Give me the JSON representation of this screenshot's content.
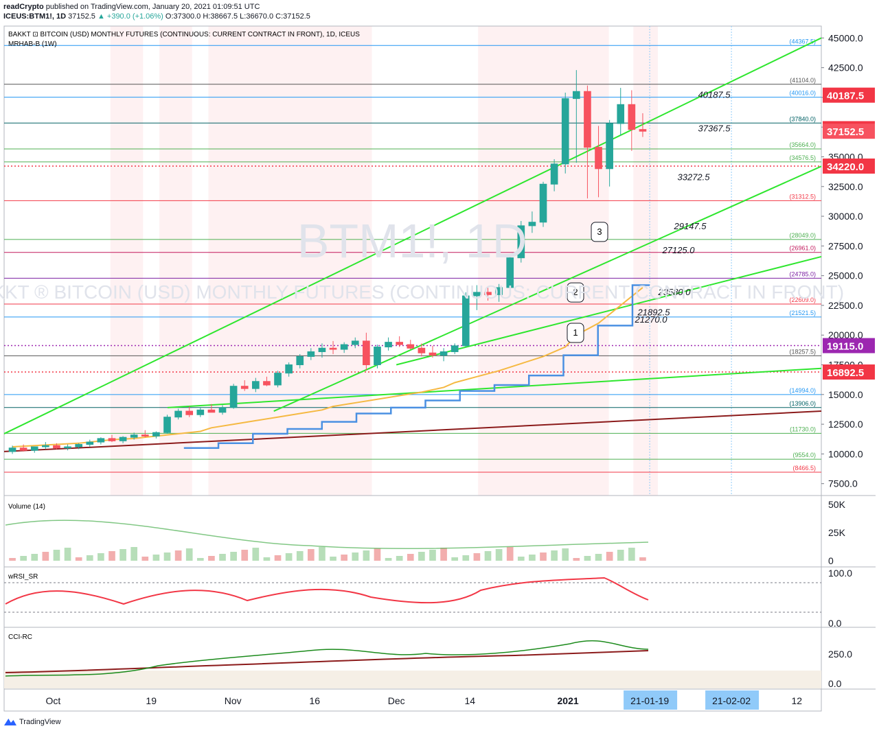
{
  "header": {
    "publisher": "readCrypto",
    "published_on": "published on TradingView.com, January 20, 2021 01:09:51 UTC",
    "symbol": "ICEUS:BTM1!, 1D",
    "price": "37152.5",
    "change": "▲ +390.0 (+1.06%)",
    "ohlc": "O:37300.0 H:38667.5 L:36670.0 C:37152.5"
  },
  "chart": {
    "title": "BAKKT ⊡ BITCOIN (USD) MONTHLY FUTURES (CONTINUOUS: CURRENT CONTRACT IN FRONT), 1D, ICEUS",
    "indicator_line": "MRHAB-B (1W)",
    "watermark_big": "BTM1!, 1D",
    "watermark_small": "BAKKT ® BITCOIN (USD) MONTHLY FUTURES (CONTINUOUS: CURRENT CONTRACT IN FRONT)"
  },
  "chart_data": {
    "type": "candlestick",
    "y_ticks": [
      "45000.0",
      "42500.0",
      "40000.0",
      "37500.0",
      "35000.0",
      "32500.0",
      "30000.0",
      "27500.0",
      "25000.0",
      "22500.0",
      "20000.0",
      "17500.0",
      "15000.0",
      "12500.0",
      "10000.0",
      "7500.0"
    ],
    "x_ticks": [
      "Oct",
      "19",
      "Nov",
      "16",
      "Dec",
      "14",
      "2021",
      "21-01-19",
      "21-02-02",
      "12"
    ],
    "price_badges": [
      {
        "value": "40187.5",
        "color": "#f23645"
      },
      {
        "value": "37367.5",
        "color": "#f23645"
      },
      {
        "value": "37152.5",
        "color": "#f7525f"
      },
      {
        "value": "34220.0",
        "color": "#f23645"
      },
      {
        "value": "19115.0",
        "color": "#9c27b0"
      },
      {
        "value": "16892.5",
        "color": "#f23645"
      }
    ],
    "horizontal_levels": [
      {
        "value": 44367.5,
        "label": "(44367.5)",
        "color": "#2196f3"
      },
      {
        "value": 41104.0,
        "label": "(41104.0)",
        "color": "#555555"
      },
      {
        "value": 40016.0,
        "label": "(40016.0)",
        "color": "#2196f3"
      },
      {
        "value": 37840.0,
        "label": "(37840.0)",
        "color": "#006064"
      },
      {
        "value": 35664.0,
        "label": "(35664.0)",
        "color": "#4caf50"
      },
      {
        "value": 34576.5,
        "label": "(34576.5)",
        "color": "#4caf50"
      },
      {
        "value": 31312.5,
        "label": "(31312.5)",
        "color": "#f23645"
      },
      {
        "value": 28049.0,
        "label": "(28049.0)",
        "color": "#4caf50"
      },
      {
        "value": 26961.0,
        "label": "(26961.0)",
        "color": "#c2185b"
      },
      {
        "value": 24785.0,
        "label": "(24785.0)",
        "color": "#7b1fa2"
      },
      {
        "value": 22609.0,
        "label": "(22609.0)",
        "color": "#f23645"
      },
      {
        "value": 21521.5,
        "label": "(21521.5)",
        "color": "#2196f3"
      },
      {
        "value": 18257.5,
        "label": "(18257.5)",
        "color": "#555555"
      },
      {
        "value": 14994.0,
        "label": "(14994.0)",
        "color": "#2196f3"
      },
      {
        "value": 13906.0,
        "label": "(13906.0)",
        "color": "#006064"
      },
      {
        "value": 11730.0,
        "label": "(11730.0)",
        "color": "#4caf50"
      },
      {
        "value": 9554.0,
        "label": "(9554.0)",
        "color": "#4caf50"
      },
      {
        "value": 8466.5,
        "label": "(8466.5)",
        "color": "#f23645"
      }
    ],
    "annotations": [
      {
        "text": "40187.5"
      },
      {
        "text": "37367.5"
      },
      {
        "text": "33272.5"
      },
      {
        "text": "29147.5"
      },
      {
        "text": "27125.0"
      },
      {
        "text": "23580.0"
      },
      {
        "text": "21892.5"
      },
      {
        "text": "21270.0"
      }
    ],
    "callouts": [
      "1",
      "2",
      "3"
    ],
    "candles": [
      [
        10200,
        10700,
        10000,
        10500
      ],
      [
        10500,
        10800,
        10200,
        10300
      ],
      [
        10300,
        10600,
        10100,
        10600
      ],
      [
        10600,
        11000,
        10400,
        10700
      ],
      [
        10700,
        10900,
        10400,
        10500
      ],
      [
        10500,
        10800,
        10300,
        10600
      ],
      [
        10600,
        10900,
        10400,
        10800
      ],
      [
        10800,
        11200,
        10600,
        11000
      ],
      [
        11000,
        11400,
        10800,
        11300
      ],
      [
        11300,
        11600,
        11000,
        11100
      ],
      [
        11100,
        11500,
        10900,
        11400
      ],
      [
        11400,
        11800,
        11200,
        11600
      ],
      [
        11600,
        12000,
        11400,
        11500
      ],
      [
        11500,
        11900,
        11300,
        11800
      ],
      [
        11800,
        13300,
        11700,
        13100
      ],
      [
        13100,
        13800,
        12900,
        13600
      ],
      [
        13600,
        14000,
        13100,
        13300
      ],
      [
        13300,
        13900,
        13100,
        13700
      ],
      [
        13700,
        14200,
        13500,
        13500
      ],
      [
        13500,
        14100,
        13300,
        13900
      ],
      [
        13900,
        15900,
        13800,
        15700
      ],
      [
        15700,
        16200,
        15300,
        15500
      ],
      [
        15500,
        16400,
        15200,
        16100
      ],
      [
        16100,
        16500,
        15700,
        15800
      ],
      [
        15800,
        17000,
        15600,
        16800
      ],
      [
        16800,
        17700,
        16500,
        17500
      ],
      [
        17500,
        18400,
        17200,
        18200
      ],
      [
        18200,
        18900,
        17900,
        18600
      ],
      [
        18600,
        19300,
        18100,
        18900
      ],
      [
        18900,
        19500,
        18400,
        18800
      ],
      [
        18800,
        19400,
        18500,
        19200
      ],
      [
        19200,
        19800,
        18900,
        19500
      ],
      [
        19500,
        20200,
        17000,
        17500
      ],
      [
        17500,
        19200,
        17200,
        19000
      ],
      [
        19000,
        19800,
        18700,
        19400
      ],
      [
        19400,
        19900,
        19000,
        19200
      ],
      [
        19200,
        19600,
        18800,
        18900
      ],
      [
        18900,
        19300,
        18200,
        18500
      ],
      [
        18500,
        19100,
        18100,
        18300
      ],
      [
        18300,
        18900,
        17800,
        18600
      ],
      [
        18600,
        19300,
        18400,
        19100
      ],
      [
        19100,
        23600,
        19000,
        23300
      ],
      [
        23300,
        24200,
        22100,
        23600
      ],
      [
        23600,
        24100,
        22900,
        23400
      ],
      [
        23400,
        24300,
        22800,
        24000
      ],
      [
        24000,
        26800,
        23900,
        26500
      ],
      [
        26500,
        29600,
        26100,
        29200
      ],
      [
        29200,
        30400,
        28600,
        29500
      ],
      [
        29500,
        32900,
        29100,
        32700
      ],
      [
        32700,
        34800,
        32100,
        34400
      ],
      [
        34400,
        40400,
        33600,
        39900
      ],
      [
        39900,
        42300,
        34500,
        40500
      ],
      [
        40500,
        41000,
        31500,
        35800
      ],
      [
        35800,
        37600,
        31600,
        34000
      ],
      [
        34000,
        38100,
        32500,
        37800
      ],
      [
        37800,
        40800,
        36800,
        39400
      ],
      [
        39400,
        40600,
        35500,
        37300
      ],
      [
        37300,
        38667.5,
        36670,
        37152.5
      ]
    ],
    "ma_orange": [
      10600,
      10700,
      10800,
      10900,
      11000,
      11200,
      11300,
      11500,
      11700,
      11900,
      12200,
      12500,
      12800,
      13100,
      13400,
      13700,
      14000,
      14300,
      14600,
      14900,
      15200,
      15600,
      16000,
      16500,
      17000,
      17600,
      18200,
      19000,
      20000,
      21000,
      22500,
      24000
    ],
    "step_blue": [
      10500,
      10500,
      10900,
      10900,
      11700,
      11700,
      12100,
      12100,
      12700,
      12700,
      13400,
      13400,
      13900,
      13900,
      14500,
      14500,
      15300,
      15300,
      15800,
      15800,
      16600,
      16600,
      18300,
      18300,
      20800,
      20800,
      24200
    ],
    "trendlines": [
      {
        "from": [
          0,
          11700
        ],
        "to": [
          1,
          45000
        ]
      },
      {
        "from": [
          0.33,
          13600
        ],
        "to": [
          1,
          34200
        ]
      },
      {
        "from": [
          0.48,
          17500
        ],
        "to": [
          1,
          26600
        ]
      },
      {
        "from": [
          0.2,
          13900
        ],
        "to": [
          1,
          17200
        ]
      },
      {
        "from": [
          0,
          10200
        ],
        "to": [
          1,
          13600
        ]
      }
    ],
    "volume": {
      "label": "Volume (14)",
      "ticks": [
        "50K",
        "25K",
        "0"
      ]
    },
    "wrsi": {
      "label": "wRSI_SR",
      "ticks": [
        "100.0",
        "0.0"
      ]
    },
    "cci": {
      "label": "CCI-RC",
      "ticks": [
        "250.0",
        "0.0"
      ]
    }
  },
  "footer": {
    "brand": "TradingView"
  },
  "colors": {
    "bull": "#26a69a",
    "bear": "#f7525f",
    "ma": "#f5b942",
    "bluebase": "#2962ff"
  }
}
